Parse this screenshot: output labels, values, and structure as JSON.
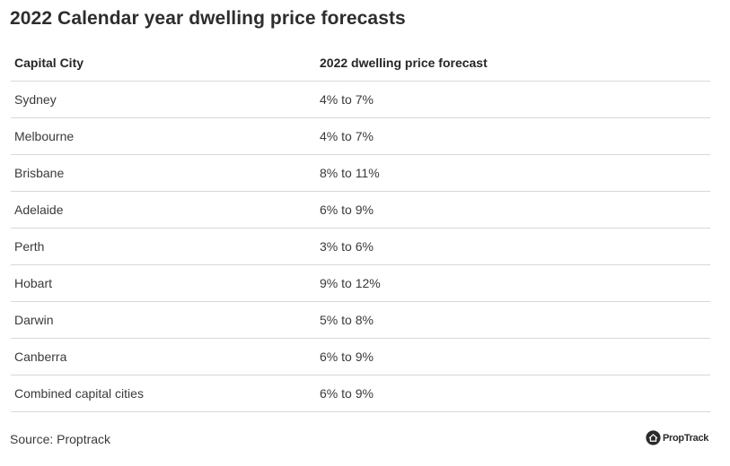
{
  "title": "2022 Calendar year dwelling price forecasts",
  "table": {
    "headers": [
      "Capital City",
      "2022 dwelling price forecast"
    ],
    "rows": [
      {
        "city": "Sydney",
        "forecast": "4% to 7%"
      },
      {
        "city": "Melbourne",
        "forecast": "4% to 7%"
      },
      {
        "city": "Brisbane",
        "forecast": "8% to 11%"
      },
      {
        "city": "Adelaide",
        "forecast": "6% to 9%"
      },
      {
        "city": "Perth",
        "forecast": "3% to 6%"
      },
      {
        "city": "Hobart",
        "forecast": "9% to 12%"
      },
      {
        "city": "Darwin",
        "forecast": "5% to 8%"
      },
      {
        "city": "Canberra",
        "forecast": "6% to 9%"
      },
      {
        "city": "Combined capital cities",
        "forecast": "6% to 9%"
      }
    ]
  },
  "source": "Source: Proptrack",
  "logo": {
    "icon": "house-icon",
    "text": "PropTrack"
  },
  "colors": {
    "text": "#2b2b2b",
    "divider": "#d8d8d8",
    "background": "#ffffff"
  }
}
